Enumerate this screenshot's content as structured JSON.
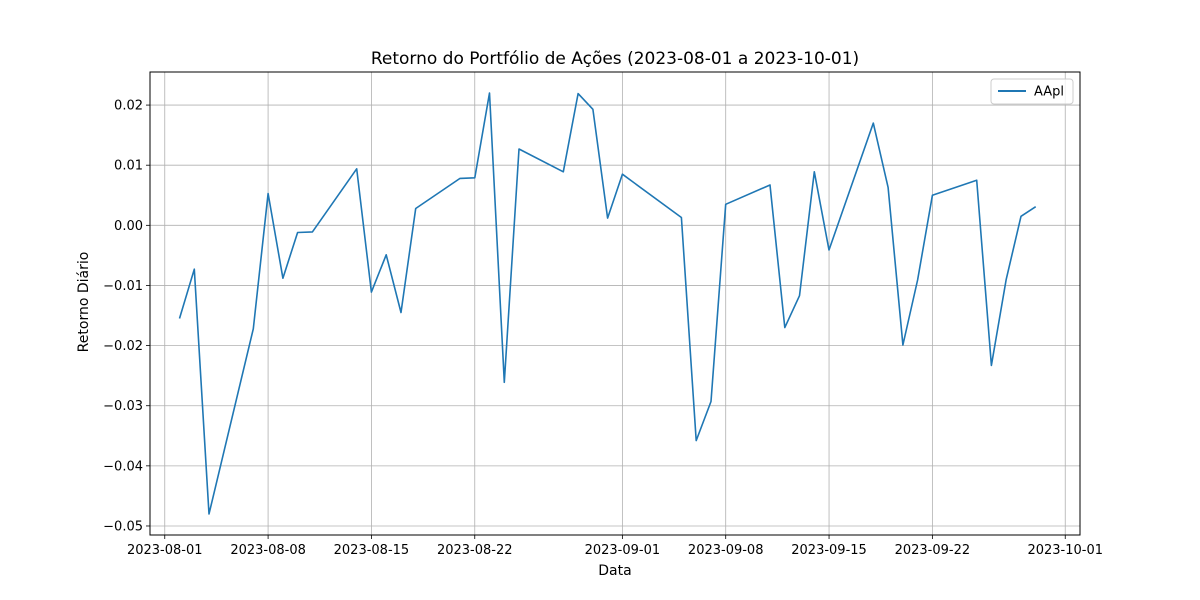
{
  "chart_data": {
    "type": "line",
    "title": "Retorno do Portfólio de Ações (2023-08-01 a 2023-10-01)",
    "xlabel": "Data",
    "ylabel": "Retorno Diário",
    "x_ticks": [
      "2023-08-01",
      "2023-08-08",
      "2023-08-15",
      "2023-08-22",
      "2023-09-01",
      "2023-09-08",
      "2023-09-15",
      "2023-09-22",
      "2023-10-01"
    ],
    "y_ticks": [
      -0.05,
      -0.04,
      -0.03,
      -0.02,
      -0.01,
      0.0,
      0.01,
      0.02
    ],
    "y_tick_labels": [
      "−0.05",
      "−0.04",
      "−0.03",
      "−0.02",
      "−0.01",
      "0.00",
      "0.01",
      "0.02"
    ],
    "xlim": [
      "2023-07-31",
      "2023-10-02"
    ],
    "ylim": [
      -0.0515,
      0.0255
    ],
    "grid": true,
    "legend_position": "top-right",
    "series": [
      {
        "name": "AApl",
        "color": "#1f77b4",
        "x": [
          "2023-08-02",
          "2023-08-03",
          "2023-08-04",
          "2023-08-07",
          "2023-08-08",
          "2023-08-09",
          "2023-08-10",
          "2023-08-11",
          "2023-08-14",
          "2023-08-15",
          "2023-08-16",
          "2023-08-17",
          "2023-08-18",
          "2023-08-21",
          "2023-08-22",
          "2023-08-23",
          "2023-08-24",
          "2023-08-25",
          "2023-08-28",
          "2023-08-29",
          "2023-08-30",
          "2023-08-31",
          "2023-09-01",
          "2023-09-05",
          "2023-09-06",
          "2023-09-07",
          "2023-09-08",
          "2023-09-11",
          "2023-09-12",
          "2023-09-13",
          "2023-09-14",
          "2023-09-15",
          "2023-09-18",
          "2023-09-19",
          "2023-09-20",
          "2023-09-21",
          "2023-09-22",
          "2023-09-25",
          "2023-09-26",
          "2023-09-27",
          "2023-09-28",
          "2023-09-29"
        ],
        "y": [
          -0.0155,
          -0.0073,
          -0.048,
          -0.0172,
          0.0053,
          -0.0088,
          -0.0012,
          -0.0011,
          0.0094,
          -0.0111,
          -0.0049,
          -0.0145,
          0.0028,
          0.0078,
          0.0079,
          0.022,
          -0.0261,
          0.0127,
          0.0089,
          0.0219,
          0.0193,
          0.0012,
          0.0085,
          0.0013,
          -0.0358,
          -0.0293,
          0.0035,
          0.0067,
          -0.017,
          -0.0117,
          0.0089,
          -0.0041,
          0.017,
          0.0063,
          -0.0199,
          -0.0091,
          0.005,
          0.0075,
          -0.0233,
          -0.009,
          0.0015,
          0.0031
        ]
      }
    ]
  }
}
